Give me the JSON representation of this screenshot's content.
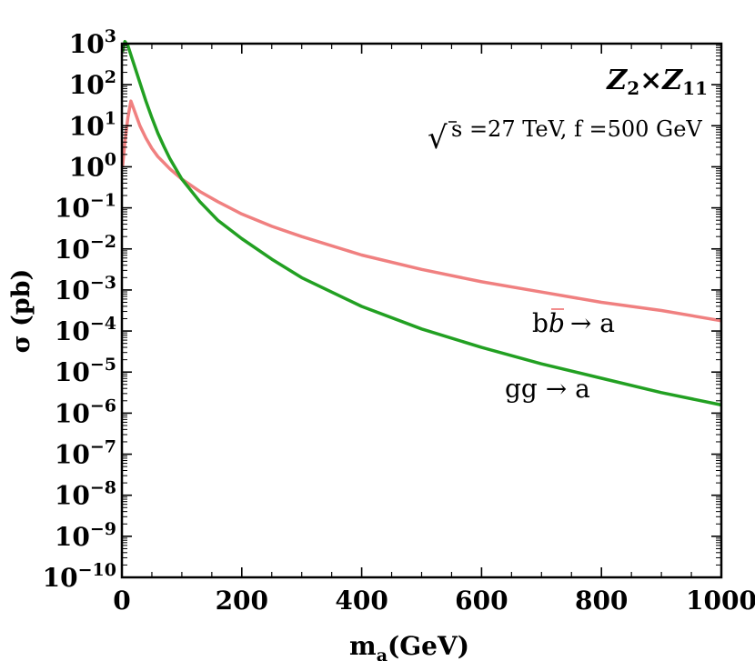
{
  "chart_data": {
    "type": "line",
    "title": "",
    "xlabel": "m",
    "xlabel_sub": "a",
    "xlabel_unit": "(GeV)",
    "ylabel": "σ (pb)",
    "xlim": [
      0,
      1000
    ],
    "ylim_log10": [
      -10,
      3
    ],
    "y_scale": "log",
    "x_ticks": [
      0,
      200,
      400,
      600,
      800,
      1000
    ],
    "x_tick_labels": [
      "0",
      "200",
      "400",
      "600",
      "800",
      "1000"
    ],
    "y_tick_exponents": [
      3,
      2,
      1,
      0,
      -1,
      -2,
      -3,
      -4,
      -5,
      -6,
      -7,
      -8,
      -9,
      -10
    ],
    "y_tick_base": "10",
    "y_tick_exp_labels": [
      "3",
      "2",
      "1",
      "0",
      "−1",
      "−2",
      "−3",
      "−4",
      "−5",
      "−6",
      "−7",
      "−8",
      "−9",
      "−10"
    ],
    "grid": false,
    "model_label": {
      "main": "Z",
      "sub1": "2",
      "times": "×",
      "main2": "Z",
      "sub2": "11"
    },
    "energy_label": {
      "sqrt": "√",
      "rest": "s =27 TeV, f =500 GeV"
    },
    "series": [
      {
        "name": "bb → a",
        "label_main": "b",
        "label_bbar": "b",
        "label_arrow": "→ a",
        "color": "#f08080",
        "points": [
          [
            1,
            0.0
          ],
          [
            5,
            0.6
          ],
          [
            10,
            1.2
          ],
          [
            15,
            1.6
          ],
          [
            20,
            1.4
          ],
          [
            30,
            1.0
          ],
          [
            40,
            0.7
          ],
          [
            50,
            0.45
          ],
          [
            60,
            0.25
          ],
          [
            70,
            0.1
          ],
          [
            80,
            -0.05
          ],
          [
            100,
            -0.3
          ],
          [
            130,
            -0.6
          ],
          [
            160,
            -0.85
          ],
          [
            200,
            -1.15
          ],
          [
            250,
            -1.45
          ],
          [
            300,
            -1.7
          ],
          [
            400,
            -2.15
          ],
          [
            500,
            -2.5
          ],
          [
            600,
            -2.8
          ],
          [
            700,
            -3.05
          ],
          [
            800,
            -3.3
          ],
          [
            900,
            -3.5
          ],
          [
            1000,
            -3.75
          ]
        ]
      },
      {
        "name": "gg → a",
        "label": "gg → a",
        "color": "#22a022",
        "points": [
          [
            1,
            2.8
          ],
          [
            5,
            3.05
          ],
          [
            10,
            2.95
          ],
          [
            20,
            2.5
          ],
          [
            30,
            2.05
          ],
          [
            40,
            1.6
          ],
          [
            50,
            1.2
          ],
          [
            60,
            0.82
          ],
          [
            70,
            0.5
          ],
          [
            80,
            0.2
          ],
          [
            100,
            -0.3
          ],
          [
            130,
            -0.85
          ],
          [
            160,
            -1.3
          ],
          [
            200,
            -1.75
          ],
          [
            250,
            -2.25
          ],
          [
            300,
            -2.7
          ],
          [
            400,
            -3.4
          ],
          [
            500,
            -3.95
          ],
          [
            600,
            -4.4
          ],
          [
            700,
            -4.8
          ],
          [
            800,
            -5.15
          ],
          [
            900,
            -5.5
          ],
          [
            1000,
            -5.8
          ]
        ]
      }
    ]
  }
}
